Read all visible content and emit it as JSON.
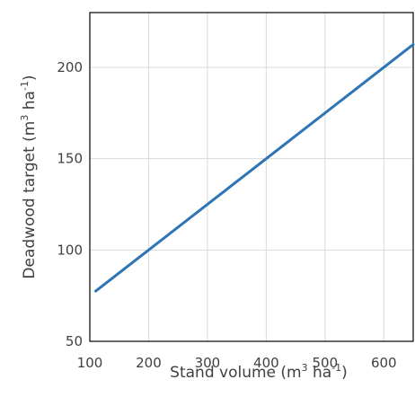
{
  "chart_data": {
    "type": "line",
    "xlabel": {
      "prefix": "Stand volume (m",
      "sup1": "3",
      "middle": " ha",
      "sup2": "-1",
      "suffix": ")"
    },
    "ylabel": {
      "prefix": "Deadwood target (m",
      "sup1": "3",
      "middle": " ha",
      "sup2": "-1",
      "suffix": ")"
    },
    "xlim": [
      100,
      650
    ],
    "ylim": [
      50,
      230
    ],
    "xticks": [
      100,
      200,
      300,
      400,
      500,
      600
    ],
    "yticks": [
      50,
      100,
      150,
      200
    ],
    "xtick_labels": [
      "100",
      "200",
      "300",
      "400",
      "500",
      "600"
    ],
    "ytick_labels": [
      "50",
      "100",
      "150",
      "200"
    ],
    "grid": true,
    "series": [
      {
        "color": "#2E75B6",
        "x": [
          110,
          650
        ],
        "y": [
          77.5,
          212.5
        ]
      }
    ]
  }
}
